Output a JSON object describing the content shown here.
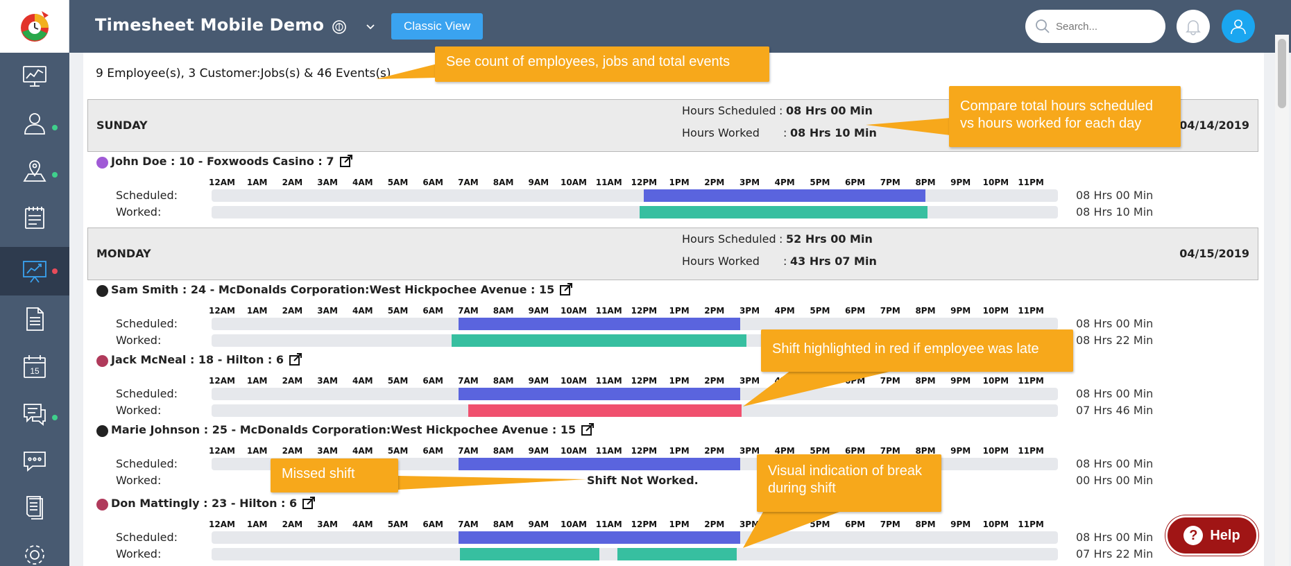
{
  "header": {
    "title": "Timesheet Mobile Demo",
    "classic_view": "Classic View",
    "search_placeholder": "Search..."
  },
  "sidebar": {
    "items": [
      "dashboard",
      "employees",
      "job-sites",
      "timesheets",
      "reports",
      "documents",
      "calendar",
      "messages",
      "chat",
      "forms",
      "settings"
    ],
    "calendar_day": "15"
  },
  "summary": "9 Employee(s), 3 Customer:Jobs(s) & 46 Events(s)",
  "labels": {
    "hours_scheduled": "Hours Scheduled",
    "hours_worked": "Hours Worked",
    "colon": ":",
    "scheduled": "Scheduled:",
    "worked": "Worked:",
    "shift_not_worked": "Shift Not Worked."
  },
  "hour_labels": [
    "12AM",
    "1AM",
    "2AM",
    "3AM",
    "4AM",
    "5AM",
    "6AM",
    "7AM",
    "8AM",
    "9AM",
    "10AM",
    "11AM",
    "12PM",
    "1PM",
    "2PM",
    "3PM",
    "4PM",
    "5PM",
    "6PM",
    "7PM",
    "8PM",
    "9PM",
    "10PM",
    "11PM"
  ],
  "days": [
    {
      "name": "SUNDAY",
      "date": "04/14/2019",
      "scheduled": "08 Hrs 00 Min",
      "worked": "08 Hrs 10 Min"
    },
    {
      "name": "MONDAY",
      "date": "04/15/2019",
      "scheduled": "52 Hrs 00 Min",
      "worked": "43 Hrs 07 Min"
    }
  ],
  "employees": [
    {
      "title": "John Doe : 10 - Foxwoods Casino : 7",
      "dot_color": "#a05ad6",
      "scheduled_dur": "08 Hrs 00 Min",
      "worked_dur": "08 Hrs 10 Min",
      "scheduled_range": [
        12.25,
        20.25
      ],
      "worked_range": [
        12.13,
        20.3
      ]
    },
    {
      "title": "Sam Smith : 24 - McDonalds Corporation:West Hickpochee Avenue : 15",
      "dot_color": "#222222",
      "scheduled_dur": "08 Hrs 00 Min",
      "worked_dur": "08 Hrs 22 Min",
      "scheduled_range": [
        7.0,
        15.0
      ],
      "worked_range": [
        6.8,
        15.17
      ]
    },
    {
      "title": "Jack McNeal : 18 - Hilton : 6",
      "dot_color": "#b03a5b",
      "scheduled_dur": "08 Hrs 00 Min",
      "worked_dur": "07 Hrs 46 Min",
      "scheduled_range": [
        7.0,
        15.0
      ],
      "worked_range": [
        7.27,
        15.03
      ]
    },
    {
      "title": "Marie Johnson : 25 - McDonalds Corporation:West Hickpochee Avenue : 15",
      "dot_color": "#222222",
      "scheduled_dur": "08 Hrs 00 Min",
      "worked_dur": "00 Hrs 00 Min",
      "scheduled_range": [
        7.0,
        15.0
      ],
      "missed": true
    },
    {
      "title": "Don Mattingly : 23 - Hilton : 6",
      "dot_color": "#b03a5b",
      "scheduled_dur": "08 Hrs 00 Min",
      "worked_dur": "07 Hrs 22 Min",
      "scheduled_range": [
        7.0,
        15.0
      ],
      "worked_segments": [
        [
          7.05,
          11.0
        ],
        [
          11.5,
          14.9
        ]
      ]
    }
  ],
  "colors": {
    "scheduled": "#5a64de",
    "worked": "#37bfa0",
    "late": "#f0506e",
    "callout": "#f7a81b",
    "header": "#485a71",
    "help": "#a01515"
  },
  "callouts": {
    "count": "See count of employees, jobs and total events",
    "compare_1": "Compare total hours scheduled",
    "compare_2": "vs hours worked for each day",
    "late": "Shift highlighted in red if employee was late",
    "missed": "Missed shift",
    "break_1": "Visual indication of break",
    "break_2": "during shift"
  },
  "help": "Help"
}
